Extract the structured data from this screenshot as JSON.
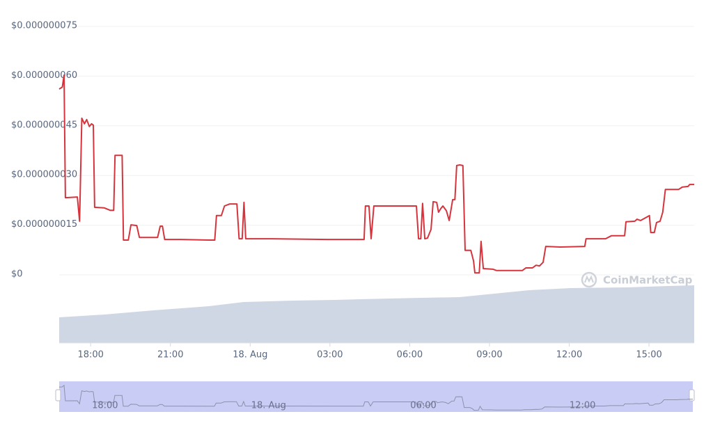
{
  "chart_data": {
    "type": "line",
    "color": "#d6343c",
    "grid": true,
    "watermark": "CoinMarketCap",
    "ylim": [
      0,
      7.5e-08
    ],
    "yticks": [
      {
        "value": 0,
        "label": "$0"
      },
      {
        "value": 1.5e-08,
        "label": "$0.000000015"
      },
      {
        "value": 3e-08,
        "label": "$0.000000030"
      },
      {
        "value": 4.5e-08,
        "label": "$0.000000045"
      },
      {
        "value": 6e-08,
        "label": "$0.000000060"
      },
      {
        "value": 7.5e-08,
        "label": "$0.000000075"
      }
    ],
    "xlim": [
      "17. Aug 16:49",
      "18. Aug 16:42"
    ],
    "xticks": [
      {
        "value": "17. Aug 18:00",
        "label": "18:00"
      },
      {
        "value": "17. Aug 21:00",
        "label": "21:00"
      },
      {
        "value": "18. Aug 00:00",
        "label": "18. Aug"
      },
      {
        "value": "18. Aug 03:00",
        "label": "03:00"
      },
      {
        "value": "18. Aug 06:00",
        "label": "06:00"
      },
      {
        "value": "18. Aug 09:00",
        "label": "09:00"
      },
      {
        "value": "18. Aug 12:00",
        "label": "12:00"
      },
      {
        "value": "18. Aug 15:00",
        "label": "15:00"
      }
    ],
    "x": [
      "17. Aug 16:49",
      "17. Aug 16:56",
      "17. Aug 17:00",
      "17. Aug 17:03",
      "17. Aug 17:30",
      "17. Aug 17:35",
      "17. Aug 17:40",
      "17. Aug 17:46",
      "17. Aug 17:51",
      "17. Aug 17:57",
      "17. Aug 18:02",
      "17. Aug 18:06",
      "17. Aug 18:09",
      "17. Aug 18:31",
      "17. Aug 18:44",
      "17. Aug 18:52",
      "17. Aug 18:55",
      "17. Aug 19:11",
      "17. Aug 19:14",
      "17. Aug 19:25",
      "17. Aug 19:31",
      "17. Aug 19:44",
      "17. Aug 19:50",
      "17. Aug 20:31",
      "17. Aug 20:37",
      "17. Aug 20:42",
      "17. Aug 20:47",
      "17. Aug 21:24",
      "17. Aug 22:27",
      "17. Aug 22:40",
      "17. Aug 22:44",
      "17. Aug 22:55",
      "17. Aug 23:02",
      "17. Aug 23:14",
      "17. Aug 23:30",
      "17. Aug 23:35",
      "17. Aug 23:42",
      "17. Aug 23:46",
      "17. Aug 23:50",
      "18. Aug 00:48",
      "18. Aug 02:54",
      "18. Aug 04:17",
      "18. Aug 04:20",
      "18. Aug 04:28",
      "18. Aug 04:33",
      "18. Aug 04:39",
      "18. Aug 06:15",
      "18. Aug 06:20",
      "18. Aug 06:25",
      "18. Aug 06:29",
      "18. Aug 06:34",
      "18. Aug 06:40",
      "18. Aug 06:48",
      "18. Aug 06:53",
      "18. Aug 07:01",
      "18. Aug 07:05",
      "18. Aug 07:10",
      "18. Aug 07:15",
      "18. Aug 07:23",
      "18. Aug 07:29",
      "18. Aug 07:37",
      "18. Aug 07:42",
      "18. Aug 07:46",
      "18. Aug 07:53",
      "18. Aug 08:00",
      "18. Aug 08:05",
      "18. Aug 08:18",
      "18. Aug 08:24",
      "18. Aug 08:27",
      "18. Aug 08:37",
      "18. Aug 08:41",
      "18. Aug 08:46",
      "18. Aug 09:08",
      "18. Aug 09:16",
      "18. Aug 10:14",
      "18. Aug 10:22",
      "18. Aug 10:37",
      "18. Aug 10:45",
      "18. Aug 10:53",
      "18. Aug 11:01",
      "18. Aug 11:07",
      "18. Aug 11:40",
      "18. Aug 12:35",
      "18. Aug 12:38",
      "18. Aug 13:22",
      "18. Aug 13:35",
      "18. Aug 14:05",
      "18. Aug 14:08",
      "18. Aug 14:28",
      "18. Aug 14:33",
      "18. Aug 14:41",
      "18. Aug 14:57",
      "18. Aug 15:01",
      "18. Aug 15:04",
      "18. Aug 15:12",
      "18. Aug 15:17",
      "18. Aug 15:25",
      "18. Aug 15:31",
      "18. Aug 15:37",
      "18. Aug 16:07",
      "18. Aug 16:15",
      "18. Aug 16:28",
      "18. Aug 16:32",
      "18. Aug 16:42"
    ],
    "values": [
      5.61e-08,
      5.67e-08,
      6.03e-08,
      2.33e-08,
      2.35e-08,
      1.62e-08,
      4.73e-08,
      4.56e-08,
      4.69e-08,
      4.48e-08,
      4.56e-08,
      4.52e-08,
      2.04e-08,
      2.02e-08,
      1.95e-08,
      1.95e-08,
      3.61e-08,
      3.61e-08,
      1.05e-08,
      1.05e-08,
      1.51e-08,
      1.49e-08,
      1.13e-08,
      1.13e-08,
      1.47e-08,
      1.47e-08,
      1.07e-08,
      1.07e-08,
      1.05e-08,
      1.05e-08,
      1.79e-08,
      1.79e-08,
      2.08e-08,
      2.14e-08,
      2.14e-08,
      1.09e-08,
      1.09e-08,
      2.19e-08,
      1.09e-08,
      1.09e-08,
      1.07e-08,
      1.07e-08,
      2.08e-08,
      2.08e-08,
      1.09e-08,
      2.08e-08,
      2.08e-08,
      1.09e-08,
      1.09e-08,
      2.16e-08,
      1.09e-08,
      1.11e-08,
      1.37e-08,
      2.21e-08,
      2.19e-08,
      1.89e-08,
      2e-08,
      2.08e-08,
      1.93e-08,
      1.64e-08,
      2.27e-08,
      2.27e-08,
      3.3e-08,
      3.32e-08,
      3.3e-08,
      7.4e-09,
      7.4e-09,
      4.2e-09,
      6e-10,
      6e-10,
      1.01e-08,
      1.9e-09,
      1.7e-09,
      1.3e-09,
      1.3e-09,
      2.1e-09,
      2.1e-09,
      2.9e-09,
      2.7e-09,
      3.8e-09,
      8.6e-09,
      8.4e-09,
      8.6e-09,
      1.09e-08,
      1.09e-08,
      1.18e-08,
      1.18e-08,
      1.6e-08,
      1.62e-08,
      1.68e-08,
      1.64e-08,
      1.76e-08,
      1.79e-08,
      1.28e-08,
      1.28e-08,
      1.58e-08,
      1.62e-08,
      1.89e-08,
      2.58e-08,
      2.58e-08,
      2.65e-08,
      2.67e-08,
      2.73e-08,
      2.73e-08
    ]
  }
}
